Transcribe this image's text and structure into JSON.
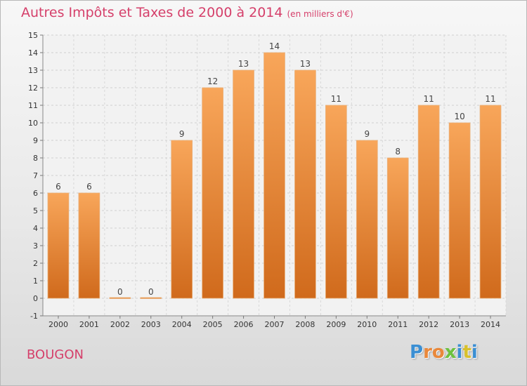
{
  "title": "Autres Impôts et Taxes de 2000 à 2014",
  "subtitle": "(en milliers d'€)",
  "place": "BOUGON",
  "logo": {
    "letters": [
      "P",
      "r",
      "o",
      "x",
      "i",
      "t",
      "i"
    ],
    "colors": [
      "#3b8fd3",
      "#e9883b",
      "#e9883b",
      "#6dc13f",
      "#3b8fd3",
      "#d8c02c",
      "#3b8fd3"
    ]
  },
  "chart_data": {
    "type": "bar",
    "title": "Autres Impôts et Taxes de 2000 à 2014",
    "subtitle": "(en milliers d'€)",
    "categories": [
      "2000",
      "2001",
      "2002",
      "2003",
      "2004",
      "2005",
      "2006",
      "2007",
      "2008",
      "2009",
      "2010",
      "2011",
      "2012",
      "2013",
      "2014"
    ],
    "values": [
      6,
      6,
      0,
      0,
      9,
      12,
      13,
      14,
      13,
      11,
      9,
      8,
      11,
      10,
      11
    ],
    "data_labels": [
      "6",
      "6",
      "0",
      "0",
      "9",
      "12",
      "13",
      "14",
      "13",
      "11",
      "9",
      "8",
      "11",
      "10",
      "11"
    ],
    "yticks": [
      "-1",
      "0",
      "1",
      "2",
      "3",
      "4",
      "5",
      "6",
      "7",
      "8",
      "9",
      "10",
      "11",
      "12",
      "13",
      "14",
      "15"
    ],
    "ylim": [
      -1,
      15
    ],
    "grid": true,
    "bar_color": "#f0903c",
    "xlabel": "",
    "ylabel": ""
  }
}
